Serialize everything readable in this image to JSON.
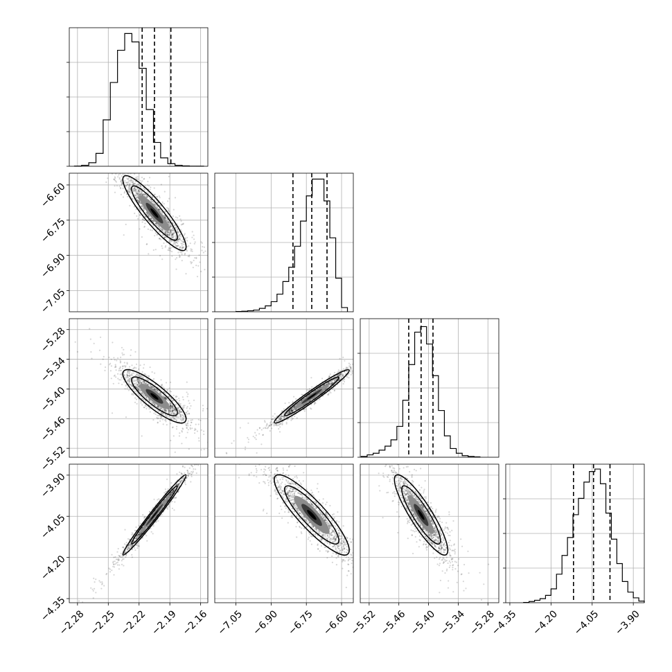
{
  "chart_data": {
    "type": "corner",
    "parameters": [
      {
        "axis_range": [
          -2.288,
          -2.153
        ],
        "ticks": [
          -2.28,
          -2.25,
          -2.22,
          -2.19,
          -2.16
        ],
        "tick_labels": [
          "−2.28",
          "−2.25",
          "−2.22",
          "−2.19",
          "−2.16"
        ],
        "quantiles": [
          -2.217,
          -2.205,
          -2.189
        ],
        "hist_bin_edges": [
          -2.283,
          -2.276,
          -2.269,
          -2.262,
          -2.255,
          -2.248,
          -2.241,
          -2.234,
          -2.227,
          -2.22,
          -2.213,
          -2.206,
          -2.199,
          -2.192,
          -2.185,
          -2.178,
          -2.171,
          -2.164,
          -2.157
        ],
        "hist_counts": [
          0.3,
          1.5,
          5.5,
          20,
          72,
          130,
          180,
          206,
          193,
          152,
          88,
          37,
          13,
          4,
          1.5,
          0.5,
          0.2,
          0.1
        ],
        "hist_ymax": 215
      },
      {
        "axis_range": [
          -7.14,
          -6.55
        ],
        "ticks": [
          -7.05,
          -6.9,
          -6.75,
          -6.6
        ],
        "tick_labels": [
          "−7.05",
          "−6.90",
          "−6.75",
          "−6.60"
        ],
        "quantiles": [
          -6.807,
          -6.727,
          -6.662
        ],
        "hist_bin_edges": [
          -7.05,
          -7.025,
          -7.0,
          -6.975,
          -6.95,
          -6.925,
          -6.9,
          -6.875,
          -6.85,
          -6.825,
          -6.8,
          -6.775,
          -6.75,
          -6.725,
          -6.7,
          -6.675,
          -6.65,
          -6.625,
          -6.6,
          -6.575
        ],
        "hist_counts": [
          0.3,
          0.6,
          1.2,
          2,
          4,
          7,
          12,
          21,
          36,
          53,
          78,
          108,
          138,
          158,
          158,
          132,
          88,
          40,
          5
        ],
        "hist_ymax": 165
      },
      {
        "axis_range": [
          -5.538,
          -5.258
        ],
        "ticks": [
          -5.52,
          -5.46,
          -5.4,
          -5.34,
          -5.28
        ],
        "tick_labels": [
          "−5.52",
          "−5.46",
          "−5.40",
          "−5.34",
          "−5.28"
        ],
        "quantiles": [
          -5.44,
          -5.415,
          -5.391
        ],
        "hist_bin_edges": [
          -5.536,
          -5.524,
          -5.512,
          -5.5,
          -5.488,
          -5.476,
          -5.464,
          -5.452,
          -5.44,
          -5.428,
          -5.416,
          -5.404,
          -5.392,
          -5.38,
          -5.368,
          -5.356,
          -5.344,
          -5.332,
          -5.32,
          -5.308,
          -5.296
        ],
        "hist_counts": [
          1,
          3,
          5,
          9,
          14,
          22,
          39,
          72,
          117,
          158,
          165,
          143,
          103,
          59,
          27,
          11,
          5,
          2,
          1,
          0.5
        ],
        "hist_ymax": 175
      },
      {
        "axis_range": [
          -4.365,
          -3.86
        ],
        "ticks": [
          -4.35,
          -4.2,
          -4.05,
          -3.9
        ],
        "tick_labels": [
          "−4.35",
          "−4.20",
          "−4.05",
          "−3.90"
        ],
        "quantiles": [
          -4.118,
          -4.045,
          -3.985
        ],
        "hist_bin_edges": [
          -4.3,
          -4.28,
          -4.26,
          -4.24,
          -4.22,
          -4.2,
          -4.18,
          -4.16,
          -4.14,
          -4.12,
          -4.1,
          -4.08,
          -4.06,
          -4.04,
          -4.02,
          -4.0,
          -3.98,
          -3.96,
          -3.94,
          -3.92,
          -3.9,
          -3.88,
          -3.86
        ],
        "hist_counts": [
          0.3,
          1.5,
          3,
          5,
          9,
          17,
          35,
          58,
          80,
          108,
          128,
          148,
          161,
          164,
          146,
          110,
          78,
          48,
          26,
          13,
          6,
          2
        ],
        "hist_ymax": 170
      }
    ],
    "pairs": [
      {
        "row": 1,
        "col": 0,
        "center": [
          -2.205,
          -6.72
        ],
        "rho": -0.9
      },
      {
        "row": 2,
        "col": 0,
        "center": [
          -2.205,
          -5.415
        ],
        "rho": -0.85
      },
      {
        "row": 2,
        "col": 1,
        "center": [
          -6.727,
          -5.415
        ],
        "rho": 0.97
      },
      {
        "row": 3,
        "col": 0,
        "center": [
          -2.205,
          -4.045
        ],
        "rho": 0.985
      },
      {
        "row": 3,
        "col": 1,
        "center": [
          -6.727,
          -4.045
        ],
        "rho": -0.88
      },
      {
        "row": 3,
        "col": 2,
        "center": [
          -5.415,
          -4.045
        ],
        "rho": -0.88
      }
    ],
    "grid": true,
    "colors": {
      "line": "#000000",
      "grid": "#b0b0b0",
      "points": "#000000",
      "fill_levels": [
        "#ffffff",
        "#d2d2d2",
        "#888888",
        "#3c3c3c",
        "#000000"
      ]
    }
  }
}
